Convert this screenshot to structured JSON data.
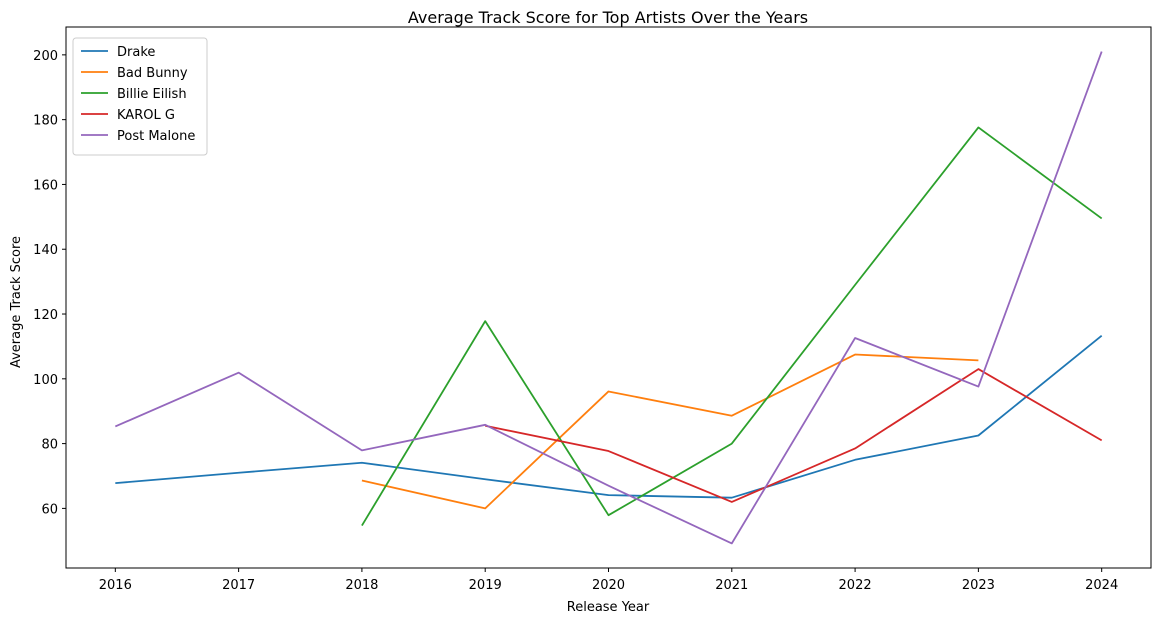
{
  "chart_data": {
    "type": "line",
    "title": "Average Track Score for Top Artists Over the Years",
    "xlabel": "Release Year",
    "ylabel": "Average Track Score",
    "x": [
      2016,
      2017,
      2018,
      2019,
      2020,
      2021,
      2022,
      2023,
      2024
    ],
    "xlim": [
      2015.6,
      2024.4
    ],
    "ylim": [
      41.6,
      208.6
    ],
    "yticks": [
      60,
      80,
      100,
      120,
      140,
      160,
      180,
      200
    ],
    "grid": false,
    "legend_position": "top-left",
    "series": [
      {
        "name": "Drake",
        "color": "#1f77b4",
        "points": [
          [
            2016,
            67.8
          ],
          [
            2017,
            71.0
          ],
          [
            2018,
            74.1
          ],
          [
            2019,
            69.0
          ],
          [
            2020,
            64.1
          ],
          [
            2021,
            63.3
          ],
          [
            2022,
            75.0
          ],
          [
            2023,
            82.5
          ],
          [
            2024,
            113.3
          ]
        ]
      },
      {
        "name": "Bad Bunny",
        "color": "#ff7f0e",
        "points": [
          [
            2018,
            68.6
          ],
          [
            2019,
            60.0
          ],
          [
            2020,
            96.1
          ],
          [
            2021,
            88.6
          ],
          [
            2022,
            107.5
          ],
          [
            2023,
            105.7
          ]
        ]
      },
      {
        "name": "Billie Eilish",
        "color": "#2ca02c",
        "points": [
          [
            2018,
            54.7
          ],
          [
            2019,
            117.8
          ],
          [
            2020,
            57.9
          ],
          [
            2021,
            80.0
          ],
          [
            2022,
            129.0
          ],
          [
            2023,
            177.6
          ],
          [
            2024,
            149.5
          ]
        ]
      },
      {
        "name": "KAROL G",
        "color": "#d62728",
        "points": [
          [
            2019,
            85.5
          ],
          [
            2020,
            77.7
          ],
          [
            2021,
            62.0
          ],
          [
            2022,
            78.5
          ],
          [
            2023,
            103.0
          ],
          [
            2024,
            81.0
          ]
        ]
      },
      {
        "name": "Post Malone",
        "color": "#9467bd",
        "points": [
          [
            2016,
            85.3
          ],
          [
            2017,
            101.9
          ],
          [
            2018,
            77.9
          ],
          [
            2019,
            85.8
          ],
          [
            2020,
            67.0
          ],
          [
            2021,
            49.2
          ],
          [
            2022,
            112.6
          ],
          [
            2023,
            97.6
          ],
          [
            2024,
            201.0
          ]
        ]
      }
    ]
  }
}
